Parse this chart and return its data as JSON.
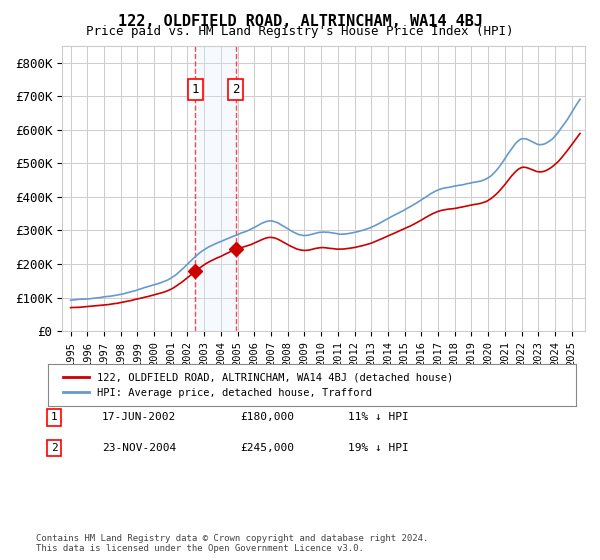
{
  "title": "122, OLDFIELD ROAD, ALTRINCHAM, WA14 4BJ",
  "subtitle": "Price paid vs. HM Land Registry's House Price Index (HPI)",
  "legend_label_red": "122, OLDFIELD ROAD, ALTRINCHAM, WA14 4BJ (detached house)",
  "legend_label_blue": "HPI: Average price, detached house, Trafford",
  "transaction1_label": "1",
  "transaction1_date": "17-JUN-2002",
  "transaction1_price": "£180,000",
  "transaction1_hpi": "11% ↓ HPI",
  "transaction1_year": 2002.46,
  "transaction1_value": 180000,
  "transaction2_label": "2",
  "transaction2_date": "23-NOV-2004",
  "transaction2_price": "£245,000",
  "transaction2_hpi": "19% ↓ HPI",
  "transaction2_year": 2004.9,
  "transaction2_value": 245000,
  "footer": "Contains HM Land Registry data © Crown copyright and database right 2024.\nThis data is licensed under the Open Government Licence v3.0.",
  "ylim": [
    0,
    850000
  ],
  "yticks": [
    0,
    100000,
    200000,
    300000,
    400000,
    500000,
    600000,
    700000,
    800000
  ],
  "ytick_labels": [
    "£0",
    "£100K",
    "£200K",
    "£300K",
    "£400K",
    "£500K",
    "£600K",
    "£700K",
    "£800K"
  ],
  "color_red": "#cc0000",
  "color_blue": "#6699cc",
  "color_shade": "#ddeeff",
  "background_color": "#ffffff",
  "grid_color": "#cccccc"
}
